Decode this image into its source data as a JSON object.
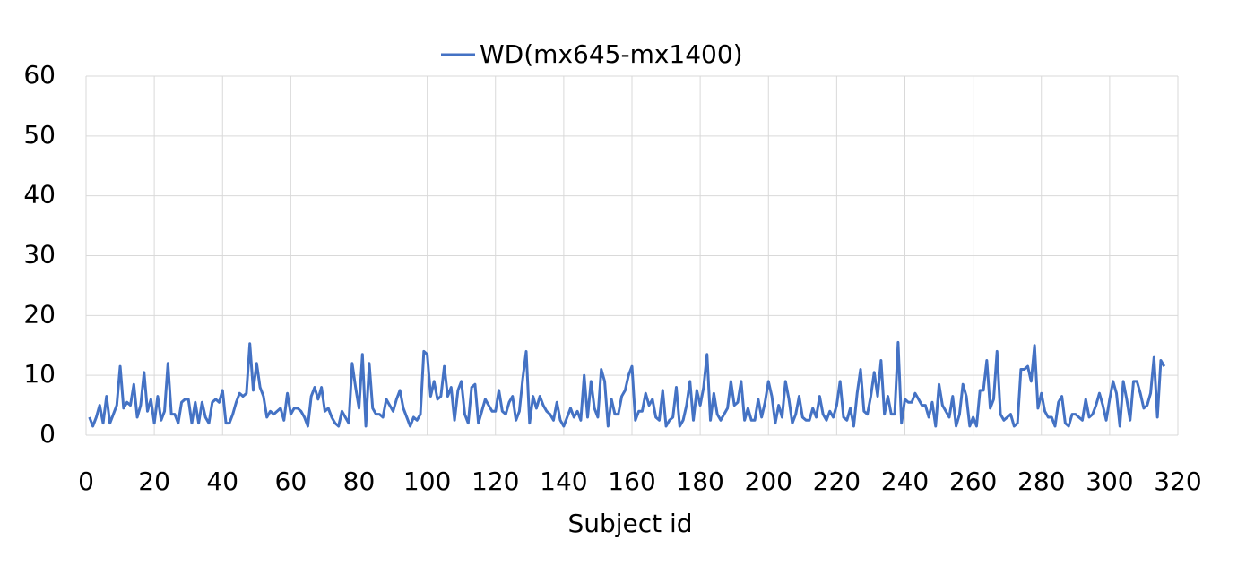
{
  "chart_data": {
    "type": "line",
    "x_label": "Subject id",
    "xlim": [
      0,
      320
    ],
    "xticks": [
      0,
      20,
      40,
      60,
      80,
      100,
      120,
      140,
      160,
      180,
      200,
      220,
      240,
      260,
      280,
      300,
      320
    ],
    "ylim": [
      0,
      60
    ],
    "yticks": [
      0,
      10,
      20,
      30,
      40,
      50,
      60
    ],
    "grid": true,
    "legend": "top",
    "x": [
      1,
      2,
      3,
      4,
      5,
      6,
      7,
      8,
      9,
      10,
      11,
      12,
      13,
      14,
      15,
      16,
      17,
      18,
      19,
      20,
      21,
      22,
      23,
      24,
      25,
      26,
      27,
      28,
      29,
      30,
      31,
      32,
      33,
      34,
      35,
      36,
      37,
      38,
      39,
      40,
      41,
      42,
      43,
      44,
      45,
      46,
      47,
      48,
      49,
      50,
      51,
      52,
      53,
      54,
      55,
      56,
      57,
      58,
      59,
      60,
      61,
      62,
      63,
      64,
      65,
      66,
      67,
      68,
      69,
      70,
      71,
      72,
      73,
      74,
      75,
      76,
      77,
      78,
      79,
      80,
      81,
      82,
      83,
      84,
      85,
      86,
      87,
      88,
      89,
      90,
      91,
      92,
      93,
      94,
      95,
      96,
      97,
      98,
      99,
      100,
      101,
      102,
      103,
      104,
      105,
      106,
      107,
      108,
      109,
      110,
      111,
      112,
      113,
      114,
      115,
      116,
      117,
      118,
      119,
      120,
      121,
      122,
      123,
      124,
      125,
      126,
      127,
      128,
      129,
      130,
      131,
      132,
      133,
      134,
      135,
      136,
      137,
      138,
      139,
      140,
      141,
      142,
      143,
      144,
      145,
      146,
      147,
      148,
      149,
      150,
      151,
      152,
      153,
      154,
      155,
      156,
      157,
      158,
      159,
      160,
      161,
      162,
      163,
      164,
      165,
      166,
      167,
      168,
      169,
      170,
      171,
      172,
      173,
      174,
      175,
      176,
      177,
      178,
      179,
      180,
      181,
      182,
      183,
      184,
      185,
      186,
      187,
      188,
      189,
      190,
      191,
      192,
      193,
      194,
      195,
      196,
      197,
      198,
      199,
      200,
      201,
      202,
      203,
      204,
      205,
      206,
      207,
      208,
      209,
      210,
      211,
      212,
      213,
      214,
      215,
      216,
      217,
      218,
      219,
      220,
      221,
      222,
      223,
      224,
      225,
      226,
      227,
      228,
      229,
      230,
      231,
      232,
      233,
      234,
      235,
      236,
      237,
      238,
      239,
      240,
      241,
      242,
      243,
      244,
      245,
      246,
      247,
      248,
      249,
      250,
      251,
      252,
      253,
      254,
      255,
      256,
      257,
      258,
      259,
      260,
      261,
      262,
      263,
      264,
      265,
      266,
      267,
      268,
      269,
      270,
      271,
      272,
      273,
      274,
      275,
      276,
      277,
      278,
      279,
      280,
      281,
      282,
      283,
      284,
      285,
      286,
      287,
      288,
      289,
      290,
      291,
      292,
      293,
      294,
      295,
      296,
      297,
      298,
      299,
      300,
      301,
      302,
      303,
      304,
      305,
      306,
      307,
      308,
      309,
      310,
      311,
      312,
      313,
      314,
      315,
      316
    ],
    "series": [
      {
        "name": "WD(mx645-mx1400)",
        "color": "#4472c4",
        "values": [
          3,
          1.5,
          3,
          5,
          2,
          6.5,
          2,
          3.5,
          5,
          11.5,
          4.5,
          5.5,
          5,
          8.5,
          3,
          5,
          10.5,
          4,
          6,
          2,
          6.5,
          2.5,
          4,
          12,
          3.5,
          3.5,
          2,
          5.5,
          6,
          6,
          2,
          5.5,
          2,
          5.5,
          3,
          2,
          5.5,
          6,
          5.5,
          7.5,
          2,
          2,
          3.5,
          5.5,
          7,
          6.5,
          7,
          15.3,
          7.5,
          12,
          8,
          6.5,
          3,
          4,
          3.5,
          4,
          4.5,
          2.5,
          7,
          3.5,
          4.5,
          4.5,
          4,
          3,
          1.5,
          6.5,
          8,
          6,
          8,
          4,
          4.5,
          3,
          2,
          1.5,
          4,
          3,
          2,
          12,
          8,
          4.5,
          13.5,
          1.5,
          12,
          4.5,
          3.5,
          3.5,
          3,
          6,
          5,
          4,
          6,
          7.5,
          4.5,
          3,
          1.5,
          3,
          2.5,
          3.5,
          14,
          13.5,
          6.5,
          9,
          6,
          6.5,
          11.5,
          6.5,
          8,
          2.5,
          7.5,
          9,
          3.5,
          2,
          8,
          8.5,
          2,
          4,
          6,
          5,
          4,
          4,
          7.5,
          4,
          3.5,
          5.5,
          6.5,
          2.5,
          4,
          9.5,
          14,
          2,
          6.5,
          4.5,
          6.5,
          5,
          4,
          3.5,
          2.5,
          5.5,
          2.5,
          1.5,
          3,
          4.5,
          3,
          4,
          2.5,
          10,
          3,
          9,
          4.5,
          3,
          11,
          9,
          1.5,
          6,
          3.5,
          3.5,
          6.5,
          7.5,
          10,
          11.5,
          2.5,
          4,
          4,
          7,
          5,
          6,
          3,
          2.5,
          7.5,
          1.5,
          2.5,
          3,
          8,
          1.5,
          2.5,
          5,
          9,
          2.5,
          7.5,
          5,
          8,
          13.5,
          2.5,
          7,
          3.5,
          2.5,
          3.5,
          4.5,
          9,
          5,
          5.5,
          9,
          2.5,
          4.5,
          2.5,
          2.5,
          6,
          3,
          5.5,
          9,
          6.5,
          2,
          5,
          3,
          9,
          6,
          2,
          3.5,
          6.5,
          3,
          2.5,
          2.5,
          4.5,
          3,
          6.5,
          3.5,
          2.5,
          4,
          3,
          5,
          9,
          3,
          2.5,
          4.5,
          1.5,
          7,
          11,
          4,
          3.5,
          6.5,
          10.5,
          6.5,
          12.5,
          3.5,
          6.5,
          3.5,
          3.5,
          15.5,
          2,
          6,
          5.5,
          5.5,
          7,
          6,
          5,
          5,
          3,
          5.5,
          1.5,
          8.5,
          5,
          4,
          3,
          6.5,
          1.5,
          3.5,
          8.5,
          6.5,
          1.5,
          3,
          1.5,
          7.5,
          7.5,
          12.5,
          4.5,
          6,
          14,
          3.5,
          2.5,
          3,
          3.5,
          1.5,
          2,
          11,
          11,
          11.5,
          9,
          15,
          4.5,
          7,
          4,
          3,
          3,
          1.5,
          5.5,
          6.5,
          2,
          1.5,
          3.5,
          3.5,
          3,
          2.5,
          6,
          3,
          3.5,
          5,
          7,
          5,
          2.5,
          6,
          9,
          7,
          1.5,
          9,
          6,
          2.5,
          9,
          9,
          7,
          4.5,
          5,
          7,
          13,
          3,
          12.5,
          11.5
        ]
      }
    ]
  }
}
